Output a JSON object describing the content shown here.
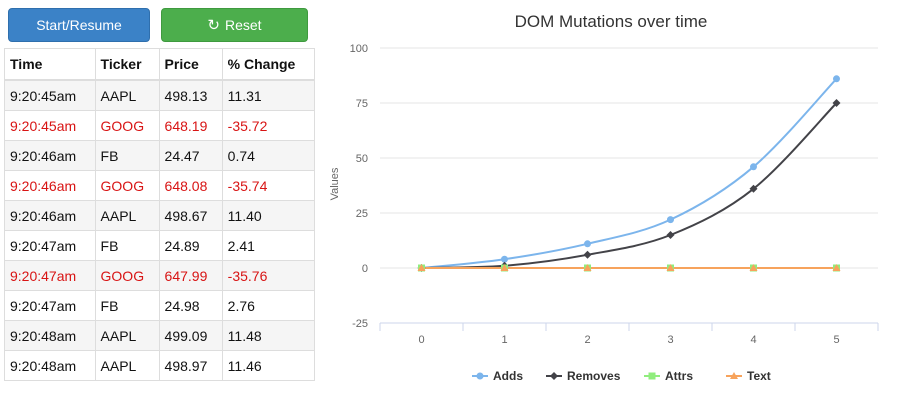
{
  "controls": {
    "start_label": "Start/Resume",
    "reset_label": "Reset",
    "reset_icon": "refresh-icon"
  },
  "table": {
    "headers": [
      "Time",
      "Ticker",
      "Price",
      "% Change"
    ],
    "rows": [
      {
        "time": "9:20:45am",
        "ticker": "AAPL",
        "price": "498.13",
        "change": "11.31",
        "negative": false
      },
      {
        "time": "9:20:45am",
        "ticker": "GOOG",
        "price": "648.19",
        "change": "-35.72",
        "negative": true
      },
      {
        "time": "9:20:46am",
        "ticker": "FB",
        "price": "24.47",
        "change": "0.74",
        "negative": false
      },
      {
        "time": "9:20:46am",
        "ticker": "GOOG",
        "price": "648.08",
        "change": "-35.74",
        "negative": true
      },
      {
        "time": "9:20:46am",
        "ticker": "AAPL",
        "price": "498.67",
        "change": "11.40",
        "negative": false
      },
      {
        "time": "9:20:47am",
        "ticker": "FB",
        "price": "24.89",
        "change": "2.41",
        "negative": false
      },
      {
        "time": "9:20:47am",
        "ticker": "GOOG",
        "price": "647.99",
        "change": "-35.76",
        "negative": true
      },
      {
        "time": "9:20:47am",
        "ticker": "FB",
        "price": "24.98",
        "change": "2.76",
        "negative": false
      },
      {
        "time": "9:20:48am",
        "ticker": "AAPL",
        "price": "499.09",
        "change": "11.48",
        "negative": false
      },
      {
        "time": "9:20:48am",
        "ticker": "AAPL",
        "price": "498.97",
        "change": "11.46",
        "negative": false
      }
    ]
  },
  "colors": {
    "start_button": "#3b82c7",
    "reset_button": "#4cae4c",
    "negative_text": "#d81414"
  },
  "chart_data": {
    "type": "line",
    "title": "DOM Mutations over time",
    "xlabel": "",
    "ylabel": "Values",
    "x": [
      0,
      1,
      2,
      3,
      4,
      5
    ],
    "ylim": [
      -25,
      100
    ],
    "yticks": [
      -25,
      0,
      25,
      50,
      75,
      100
    ],
    "grid": true,
    "legend_position": "bottom",
    "series": [
      {
        "name": "Adds",
        "values": [
          0,
          4,
          11,
          22,
          46,
          86
        ],
        "color": "#7cb5ec",
        "marker": "circle"
      },
      {
        "name": "Removes",
        "values": [
          0,
          1,
          6,
          15,
          36,
          75
        ],
        "color": "#434348",
        "marker": "diamond"
      },
      {
        "name": "Attrs",
        "values": [
          0,
          0,
          0,
          0,
          0,
          0
        ],
        "color": "#90ed7d",
        "marker": "square"
      },
      {
        "name": "Text",
        "values": [
          0,
          0,
          0,
          0,
          0,
          0
        ],
        "color": "#f7a35c",
        "marker": "triangle"
      }
    ]
  }
}
